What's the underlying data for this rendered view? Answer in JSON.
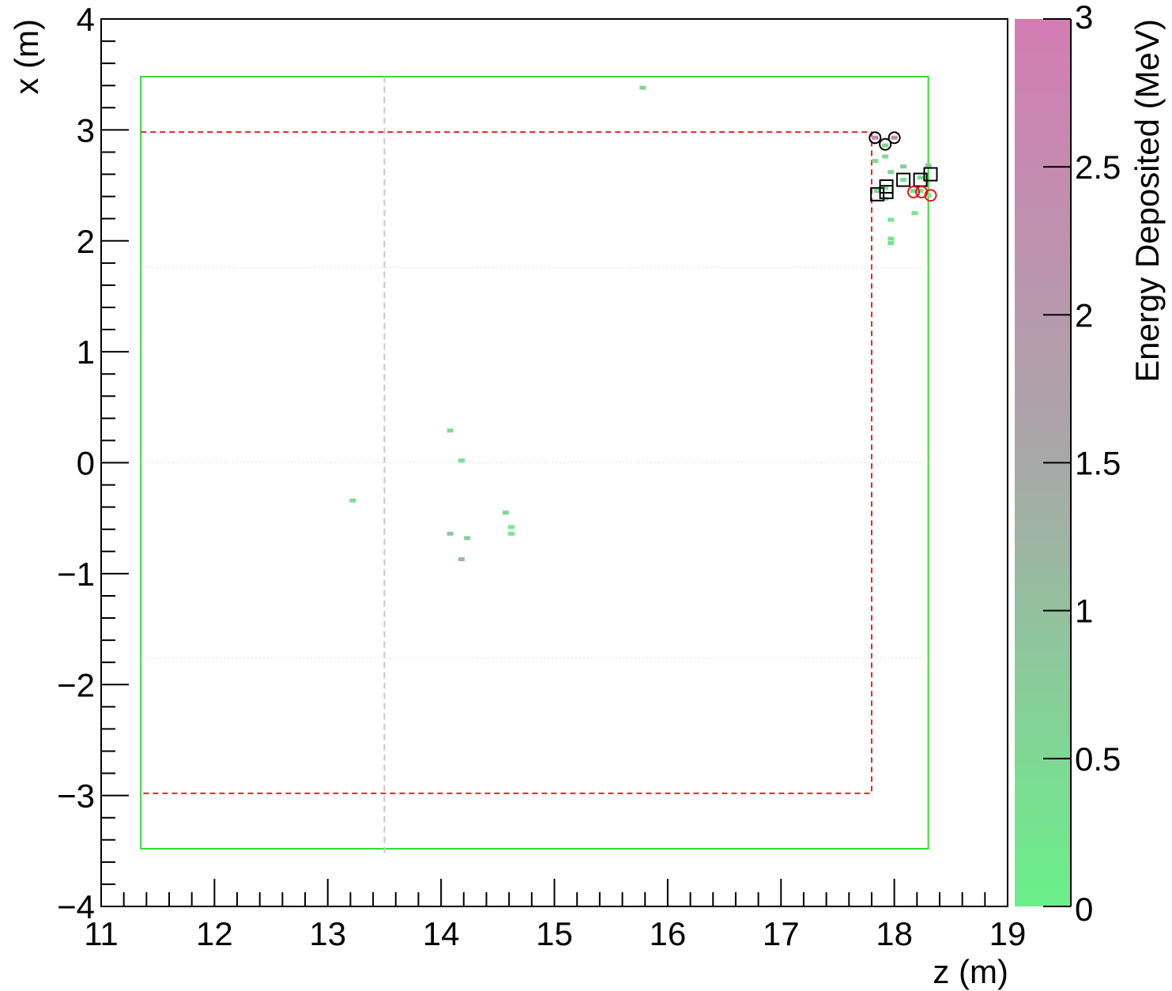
{
  "chart_data": {
    "type": "scatter",
    "title": "",
    "xlabel": "z (m)",
    "ylabel": "x (m)",
    "xlim": [
      11,
      19
    ],
    "ylim": [
      -4,
      4
    ],
    "x_ticks": [
      "11",
      "12",
      "13",
      "14",
      "15",
      "16",
      "17",
      "18",
      "19"
    ],
    "y_ticks": [
      "−4",
      "−3",
      "−2",
      "−1",
      "0",
      "1",
      "2",
      "3",
      "4"
    ],
    "colorbar": {
      "label": "Energy Deposited (MeV)",
      "range": [
        0,
        3
      ],
      "ticks": [
        "0",
        "0.5",
        "1",
        "1.5",
        "2",
        "2.5",
        "3"
      ],
      "color_low": "#6af08a",
      "color_mid": "#a8a8a8",
      "color_high": "#d47cb4"
    },
    "regions": [
      {
        "kind": "solid-box",
        "color": "#33dd33",
        "z": [
          11.35,
          18.3
        ],
        "x": [
          -3.48,
          3.48
        ]
      },
      {
        "kind": "dashed-box-open-left",
        "color": "#ee2222",
        "z": [
          11.35,
          17.8
        ],
        "x": [
          -2.98,
          2.98
        ]
      },
      {
        "kind": "vertical-dashed-line",
        "color": "#c8c8c8",
        "z": 13.5,
        "x": [
          -3.52,
          3.48
        ]
      },
      {
        "kind": "horizontal-dotted-line",
        "color": "#dddddd",
        "x": 1.76,
        "z": [
          11.35,
          18.3
        ]
      },
      {
        "kind": "horizontal-dotted-line",
        "color": "#dddddd",
        "x": 0,
        "z": [
          11.35,
          18.3
        ]
      },
      {
        "kind": "horizontal-dotted-line",
        "color": "#dddddd",
        "x": -1.76,
        "z": [
          11.35,
          18.3
        ]
      }
    ],
    "hits": [
      {
        "z": 15.78,
        "x": 3.38,
        "e": 0.6
      },
      {
        "z": 14.08,
        "x": 0.29,
        "e": 0.2
      },
      {
        "z": 14.18,
        "x": 0.02,
        "e": 0.2
      },
      {
        "z": 13.22,
        "x": -0.34,
        "e": 0.4
      },
      {
        "z": 14.57,
        "x": -0.45,
        "e": 0.5
      },
      {
        "z": 14.62,
        "x": -0.58,
        "e": 0.1
      },
      {
        "z": 14.62,
        "x": -0.64,
        "e": 0.1
      },
      {
        "z": 14.08,
        "x": -0.64,
        "e": 0.9
      },
      {
        "z": 14.23,
        "x": -0.68,
        "e": 0.6
      },
      {
        "z": 14.18,
        "x": -0.87,
        "e": 1.0
      },
      {
        "z": 17.83,
        "x": 2.93,
        "e": 2.8
      },
      {
        "z": 17.92,
        "x": 2.86,
        "e": 0.5
      },
      {
        "z": 18.0,
        "x": 2.93,
        "e": 2.6
      },
      {
        "z": 17.83,
        "x": 2.72,
        "e": 0.5
      },
      {
        "z": 17.92,
        "x": 2.76,
        "e": 0.5
      },
      {
        "z": 17.97,
        "x": 2.62,
        "e": 0.5
      },
      {
        "z": 18.08,
        "x": 2.67,
        "e": 0.7
      },
      {
        "z": 18.08,
        "x": 2.55,
        "e": 0.3
      },
      {
        "z": 18.23,
        "x": 2.57,
        "e": 0.4
      },
      {
        "z": 18.3,
        "x": 2.68,
        "e": 0.8
      },
      {
        "z": 17.85,
        "x": 2.45,
        "e": 0.4
      },
      {
        "z": 17.92,
        "x": 2.48,
        "e": 0.3
      },
      {
        "z": 17.92,
        "x": 2.38,
        "e": 0.5
      },
      {
        "z": 18.17,
        "x": 2.45,
        "e": 0.4
      },
      {
        "z": 18.23,
        "x": 2.45,
        "e": 0.3
      },
      {
        "z": 18.3,
        "x": 2.41,
        "e": 0.2
      },
      {
        "z": 17.97,
        "x": 2.19,
        "e": 0.2
      },
      {
        "z": 18.18,
        "x": 2.25,
        "e": 0.2
      },
      {
        "z": 17.97,
        "x": 2.02,
        "e": 0.3
      },
      {
        "z": 17.97,
        "x": 1.98,
        "e": 0.2
      }
    ],
    "markers": [
      {
        "shape": "circle",
        "color": "#000000",
        "z": 17.83,
        "x": 2.93
      },
      {
        "shape": "circle",
        "color": "#000000",
        "z": 17.92,
        "x": 2.87
      },
      {
        "shape": "circle",
        "color": "#000000",
        "z": 18.0,
        "x": 2.93
      },
      {
        "shape": "square",
        "color": "#000000",
        "z": 17.85,
        "x": 2.42
      },
      {
        "shape": "square",
        "color": "#000000",
        "z": 17.93,
        "x": 2.44
      },
      {
        "shape": "square",
        "color": "#000000",
        "z": 17.93,
        "x": 2.49
      },
      {
        "shape": "square",
        "color": "#000000",
        "z": 18.08,
        "x": 2.55
      },
      {
        "shape": "square",
        "color": "#000000",
        "z": 18.23,
        "x": 2.55
      },
      {
        "shape": "square",
        "color": "#000000",
        "z": 18.32,
        "x": 2.6
      },
      {
        "shape": "circle",
        "color": "#ee1111",
        "z": 18.17,
        "x": 2.44
      },
      {
        "shape": "circle",
        "color": "#ee1111",
        "z": 18.24,
        "x": 2.44
      },
      {
        "shape": "circle",
        "color": "#ee1111",
        "z": 18.32,
        "x": 2.41
      }
    ]
  }
}
